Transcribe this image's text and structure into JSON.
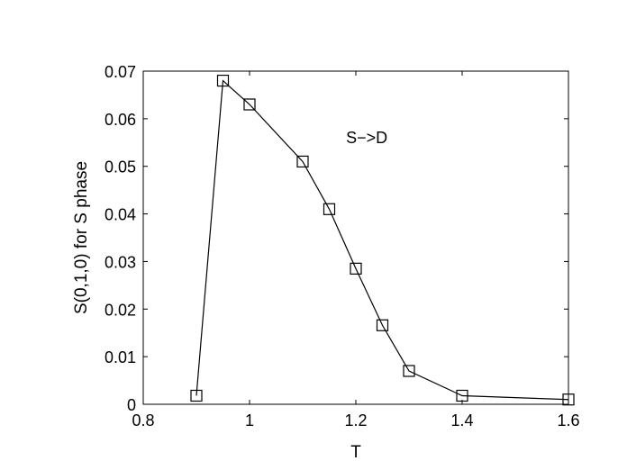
{
  "chart_data": {
    "type": "line",
    "title": "",
    "xlabel": "T",
    "ylabel": "S(0,1,0) for S phase",
    "xlim": [
      0.8,
      1.6
    ],
    "ylim": [
      0,
      0.07
    ],
    "xticks": [
      "0.8",
      "1",
      "1.2",
      "1.4",
      "1.6"
    ],
    "yticks": [
      "0",
      "0.01",
      "0.02",
      "0.03",
      "0.04",
      "0.05",
      "0.06",
      "0.07"
    ],
    "grid": false,
    "marker": "square",
    "line_color": "#000000",
    "annotation": {
      "text": "S−>D",
      "x": 1.19,
      "y": 0.056
    },
    "series": [
      {
        "x": [
          0.9,
          0.95,
          1.0,
          1.1,
          1.15,
          1.2,
          1.25,
          1.3,
          1.4,
          1.6
        ],
        "y": [
          0.0018,
          0.068,
          0.063,
          0.051,
          0.041,
          0.0285,
          0.0166,
          0.007,
          0.0018,
          0.001
        ]
      }
    ]
  }
}
